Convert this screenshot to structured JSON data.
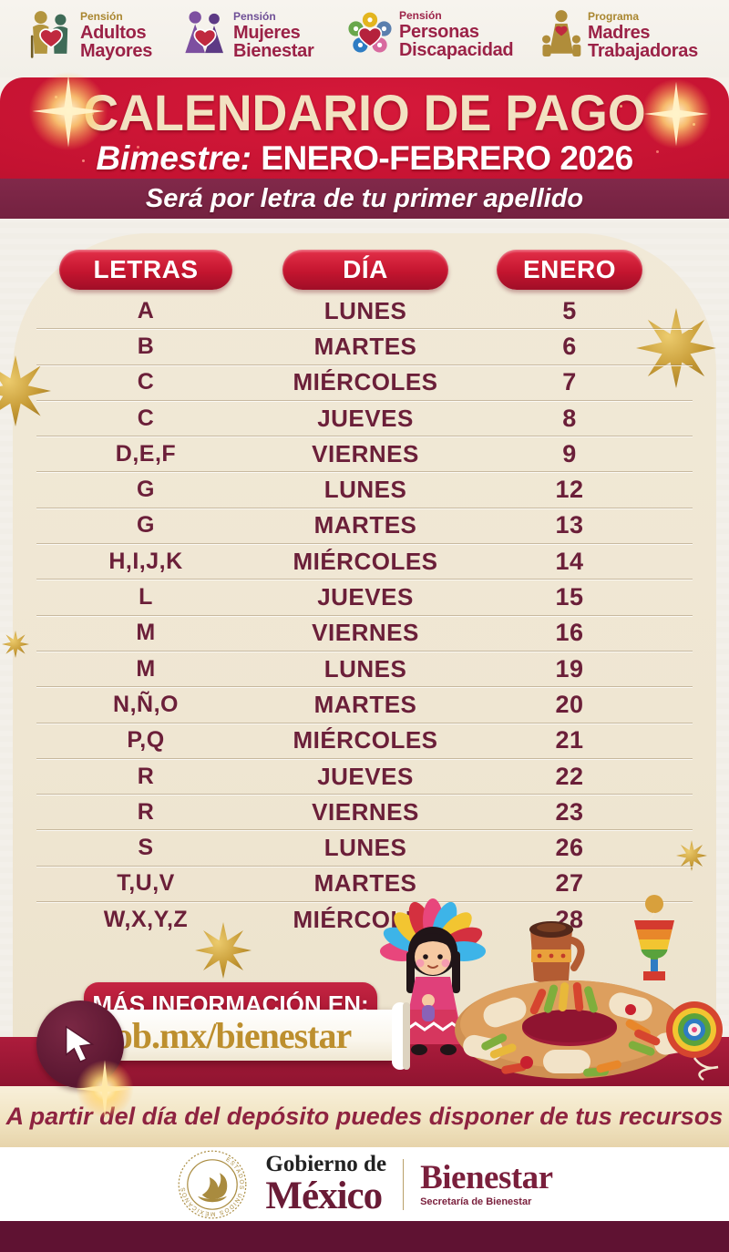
{
  "programs": [
    {
      "tag": "Pensión",
      "tag_color": "#a9862f",
      "name_line1": "Adultos",
      "name_line2": "Mayores"
    },
    {
      "tag": "Pensión",
      "tag_color": "#6f4f96",
      "name_line1": "Mujeres",
      "name_line2": "Bienestar"
    },
    {
      "tag": "Pensión",
      "tag_color": "#9d2449",
      "name_line1": "Personas",
      "name_line2": "Discapacidad"
    },
    {
      "tag": "Programa",
      "tag_color": "#a9862f",
      "name_line1": "Madres",
      "name_line2": "Trabajadoras"
    }
  ],
  "banner": {
    "title": "CALENDARIO DE PAGO",
    "subtitle_label": "Bimestre:",
    "subtitle": "ENERO-FEBRERO 2026",
    "note": "Será por letra de tu primer apellido"
  },
  "table": {
    "columns": [
      "LETRAS",
      "DÍA",
      "ENERO"
    ],
    "rows": [
      {
        "letters": "A",
        "day": "LUNES",
        "date": "5"
      },
      {
        "letters": "B",
        "day": "MARTES",
        "date": "6"
      },
      {
        "letters": "C",
        "day": "MIÉRCOLES",
        "date": "7"
      },
      {
        "letters": "C",
        "day": "JUEVES",
        "date": "8"
      },
      {
        "letters": "D,E,F",
        "day": "VIERNES",
        "date": "9"
      },
      {
        "letters": "G",
        "day": "LUNES",
        "date": "12"
      },
      {
        "letters": "G",
        "day": "MARTES",
        "date": "13"
      },
      {
        "letters": "H,I,J,K",
        "day": "MIÉRCOLES",
        "date": "14"
      },
      {
        "letters": "L",
        "day": "JUEVES",
        "date": "15"
      },
      {
        "letters": "M",
        "day": "VIERNES",
        "date": "16"
      },
      {
        "letters": "M",
        "day": "LUNES",
        "date": "19"
      },
      {
        "letters": "N,Ñ,O",
        "day": "MARTES",
        "date": "20"
      },
      {
        "letters": "P,Q",
        "day": "MIÉRCOLES",
        "date": "21"
      },
      {
        "letters": "R",
        "day": "JUEVES",
        "date": "22"
      },
      {
        "letters": "R",
        "day": "VIERNES",
        "date": "23"
      },
      {
        "letters": "S",
        "day": "LUNES",
        "date": "26"
      },
      {
        "letters": "T,U,V",
        "day": "MARTES",
        "date": "27"
      },
      {
        "letters": "W,X,Y,Z",
        "day": "MIÉRCOLES",
        "date": "28"
      }
    ]
  },
  "info": {
    "label": "MÁS INFORMACIÓN EN:",
    "url": "gob.mx/bienestar"
  },
  "notice": "A partir del día del depósito puedes disponer de tus recursos",
  "footer": {
    "gov_line1": "Gobierno de",
    "gov_line2": "México",
    "agency": "Bienestar",
    "agency_sub": "Secretaría de Bienestar",
    "seal_text": "ESTADOS UNIDOS MEXICANOS"
  },
  "colors": {
    "banner_red": "#c31231",
    "maroon_strip": "#742140",
    "row_text": "#6b1f39",
    "cream_panel": "#efe6d2",
    "gold": "#bd8f2e",
    "footer_maroon": "#5f1232"
  }
}
